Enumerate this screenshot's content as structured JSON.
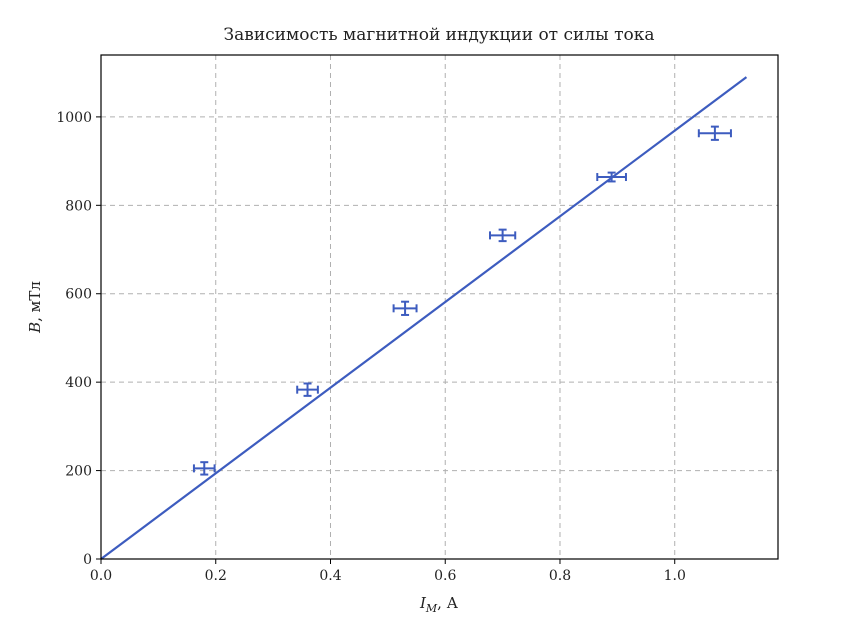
{
  "chart_data": {
    "type": "scatter",
    "title": "Зависимость магнитной индукции от силы тока",
    "xlabel": "I",
    "xlabel_sub": "M",
    "xlabel_unit": ", А",
    "ylabel": "B",
    "ylabel_unit": ", мТл",
    "xlim": [
      0,
      1.18
    ],
    "ylim": [
      0,
      1140
    ],
    "xticks": [
      0.0,
      0.2,
      0.4,
      0.6,
      0.8,
      1.0
    ],
    "xtick_labels": [
      "0.0",
      "0.2",
      "0.4",
      "0.6",
      "0.8",
      "1.0"
    ],
    "yticks": [
      0,
      200,
      400,
      600,
      800,
      1000
    ],
    "ytick_labels": [
      "0",
      "200",
      "400",
      "600",
      "800",
      "1000"
    ],
    "grid": true,
    "color": "#3d5cbf",
    "points": [
      {
        "x": 0.18,
        "y": 205,
        "xerr": 0.018,
        "yerr": 14
      },
      {
        "x": 0.36,
        "y": 383,
        "xerr": 0.018,
        "yerr": 14
      },
      {
        "x": 0.53,
        "y": 567,
        "xerr": 0.02,
        "yerr": 15
      },
      {
        "x": 0.7,
        "y": 732,
        "xerr": 0.022,
        "yerr": 13
      },
      {
        "x": 0.89,
        "y": 864,
        "xerr": 0.025,
        "yerr": 10
      },
      {
        "x": 1.07,
        "y": 963,
        "xerr": 0.028,
        "yerr": 15
      }
    ],
    "fit_line": {
      "x": [
        0.0,
        1.125
      ],
      "y": [
        0,
        1090
      ]
    }
  }
}
